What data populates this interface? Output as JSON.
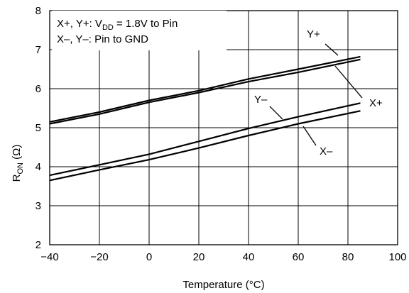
{
  "chart_data": {
    "type": "line",
    "x_axis": {
      "label": "Temperature (°C)",
      "min": -40,
      "max": 100,
      "ticks": [
        -40,
        -20,
        0,
        20,
        40,
        60,
        80,
        100
      ]
    },
    "y_axis": {
      "label_main": "R",
      "label_sub": "ON",
      "label_unit": " (Ω)",
      "min": 2,
      "max": 8,
      "ticks": [
        2,
        3,
        4,
        5,
        6,
        7,
        8
      ]
    },
    "grid": true,
    "annotation": {
      "line1_pre": "X+, Y+: V",
      "line1_sub": "DD",
      "line1_post": " = 1.8V to Pin",
      "line2": "X–, Y–: Pin to GND"
    },
    "series": [
      {
        "name": "Y+",
        "x": [
          -40,
          -20,
          0,
          20,
          40,
          60,
          85
        ],
        "y": [
          5.15,
          5.4,
          5.7,
          5.95,
          6.25,
          6.5,
          6.82
        ]
      },
      {
        "name": "X+",
        "x": [
          -40,
          -20,
          0,
          20,
          40,
          60,
          85
        ],
        "y": [
          5.1,
          5.35,
          5.65,
          5.9,
          6.18,
          6.42,
          6.75
        ]
      },
      {
        "name": "Y–",
        "x": [
          -40,
          -20,
          0,
          20,
          40,
          60,
          85
        ],
        "y": [
          3.78,
          4.05,
          4.32,
          4.65,
          4.98,
          5.28,
          5.63
        ]
      },
      {
        "name": "X–",
        "x": [
          -40,
          -20,
          0,
          20,
          40,
          60,
          85
        ],
        "y": [
          3.65,
          3.92,
          4.18,
          4.48,
          4.8,
          5.1,
          5.43
        ]
      }
    ]
  }
}
